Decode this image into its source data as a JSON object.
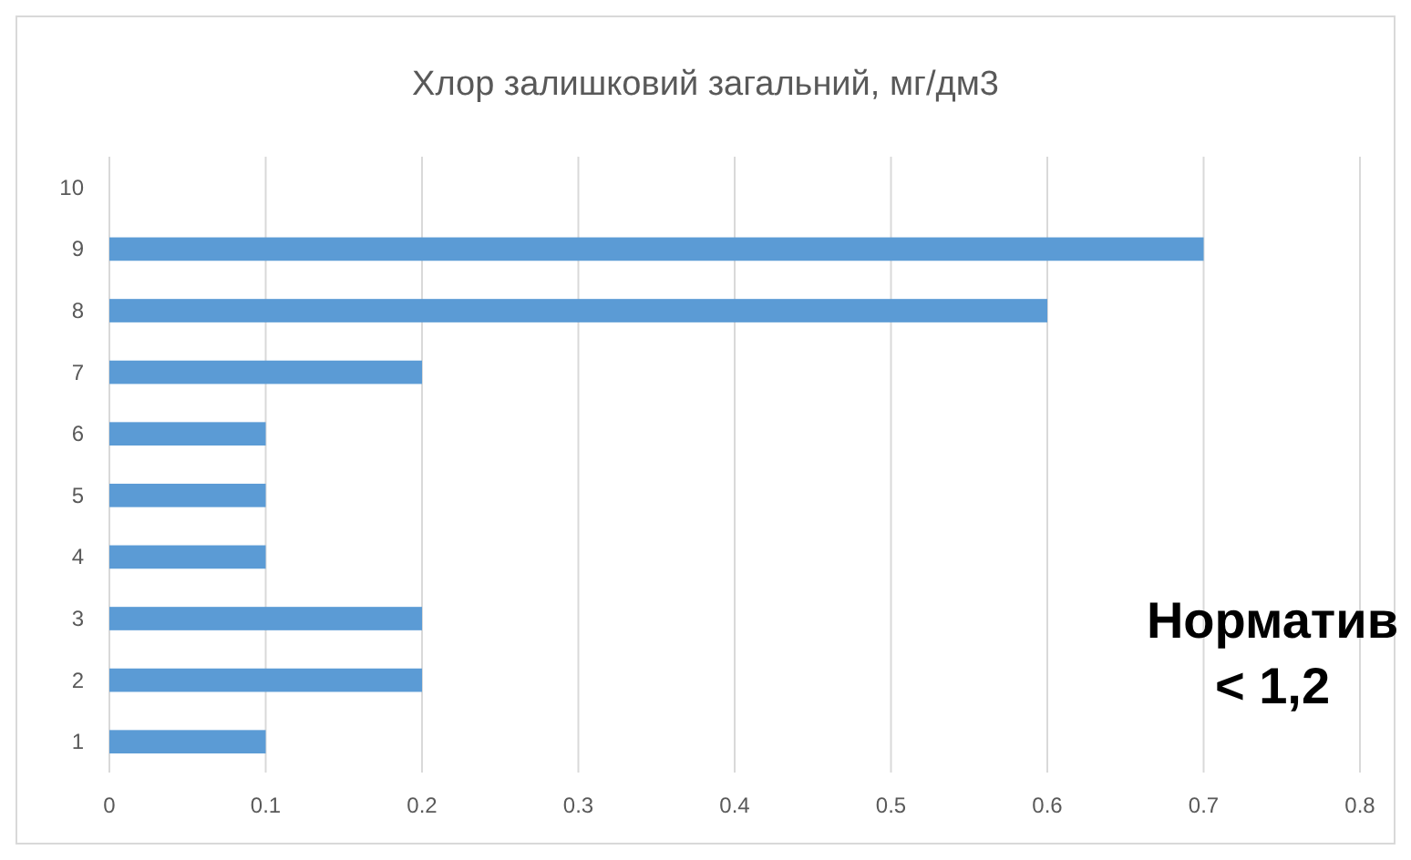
{
  "chart_data": {
    "type": "bar",
    "orientation": "horizontal",
    "title": "Хлор залишковий загальний, мг/дм3",
    "categories": [
      "10",
      "9",
      "8",
      "7",
      "6",
      "5",
      "4",
      "3",
      "2",
      "1"
    ],
    "values": [
      null,
      0.7,
      0.6,
      0.2,
      0.1,
      0.1,
      0.1,
      0.2,
      0.2,
      0.1
    ],
    "color": "#5b9bd5",
    "xlim": [
      0,
      0.8
    ],
    "xticks": [
      0,
      0.1,
      0.2,
      0.3,
      0.4,
      0.5,
      0.6,
      0.7,
      0.8
    ],
    "grid": "x",
    "annotations": [
      "Норматив\n< 1,2"
    ]
  }
}
